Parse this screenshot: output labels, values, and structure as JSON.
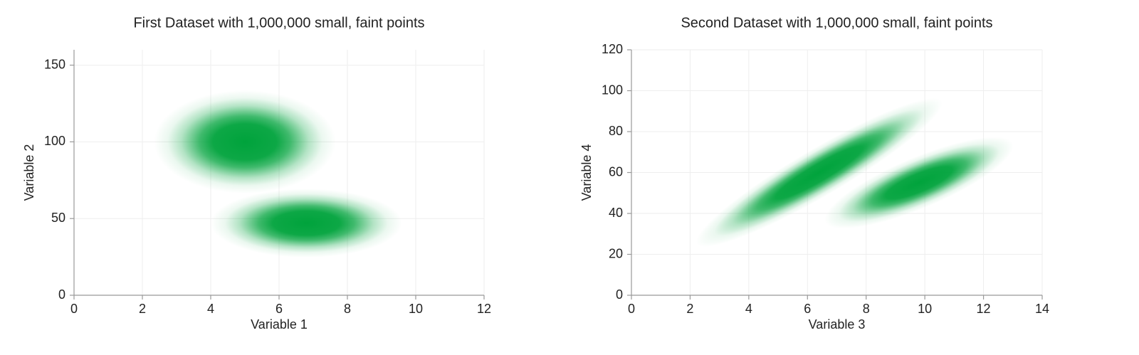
{
  "chart_data": [
    {
      "type": "scatter",
      "title": "First Dataset with 1,000,000 small, faint points",
      "x_label": "Variable 1",
      "y_label": "Variable 2",
      "color": "#00a33c",
      "xlim": [
        0,
        12
      ],
      "ylim": [
        0,
        160
      ],
      "xticks": [
        0,
        2,
        4,
        6,
        8,
        10,
        12
      ],
      "yticks": [
        0,
        50,
        100,
        150
      ],
      "grid": true,
      "clusters": [
        {
          "x": 5,
          "y": 100,
          "sx": 0.95,
          "sy": 12,
          "rho": 0
        },
        {
          "x": 6.8,
          "y": 47,
          "sx": 1.0,
          "sy": 8,
          "rho": 0
        }
      ]
    },
    {
      "type": "scatter",
      "title": "Second Dataset with 1,000,000 small, faint points",
      "x_label": "Variable 3",
      "y_label": "Variable 4",
      "color": "#00a33c",
      "xlim": [
        0,
        14
      ],
      "ylim": [
        0,
        120
      ],
      "xticks": [
        0,
        2,
        4,
        6,
        8,
        10,
        12,
        14
      ],
      "yticks": [
        0,
        20,
        40,
        60,
        80,
        100,
        120
      ],
      "grid": true,
      "clusters": [
        {
          "x": 6.4,
          "y": 60,
          "sx": 1.5,
          "sy": 13,
          "rho": 0.93
        },
        {
          "x": 9.8,
          "y": 55,
          "sx": 1.15,
          "sy": 8,
          "rho": 0.8
        }
      ]
    }
  ]
}
